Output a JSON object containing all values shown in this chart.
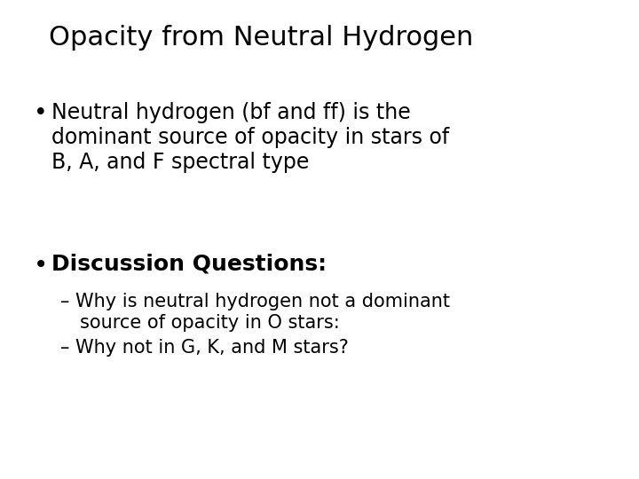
{
  "title": "Opacity from Neutral Hydrogen",
  "background_color": "#ffffff",
  "text_color": "#000000",
  "title_fontsize": 22,
  "bullet1_fontsize": 17,
  "bullet2_fontsize": 18,
  "sub_fontsize": 15,
  "bullet1_line1": "Neutral hydrogen (bf and ff) is the",
  "bullet1_line2": "dominant source of opacity in stars of",
  "bullet1_line3": "B, A, and F spectral type",
  "bullet2": "Discussion Questions:",
  "sub1_line1": "– Why is neutral hydrogen not a dominant",
  "sub1_line2": "   source of opacity in O stars:",
  "sub2": "– Why not in G, K, and M stars?"
}
